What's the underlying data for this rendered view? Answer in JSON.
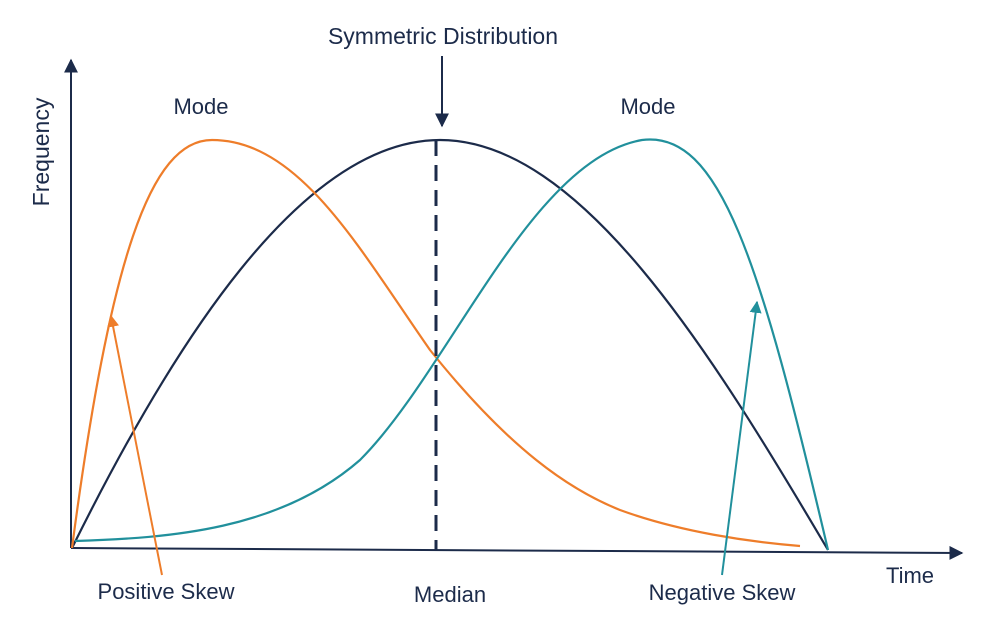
{
  "title": "Symmetric Distribution",
  "axes": {
    "y_label": "Frequency",
    "x_label": "Time"
  },
  "labels": {
    "mode_left": "Mode",
    "mode_right": "Mode",
    "median": "Median",
    "positive_skew": "Positive Skew",
    "negative_skew": "Negative Skew"
  },
  "colors": {
    "axis": "#1c2b4a",
    "symmetric": "#1c2b4a",
    "positive_skew": "#ee7d2a",
    "negative_skew": "#21909c",
    "text": "#1c2b4a"
  }
}
